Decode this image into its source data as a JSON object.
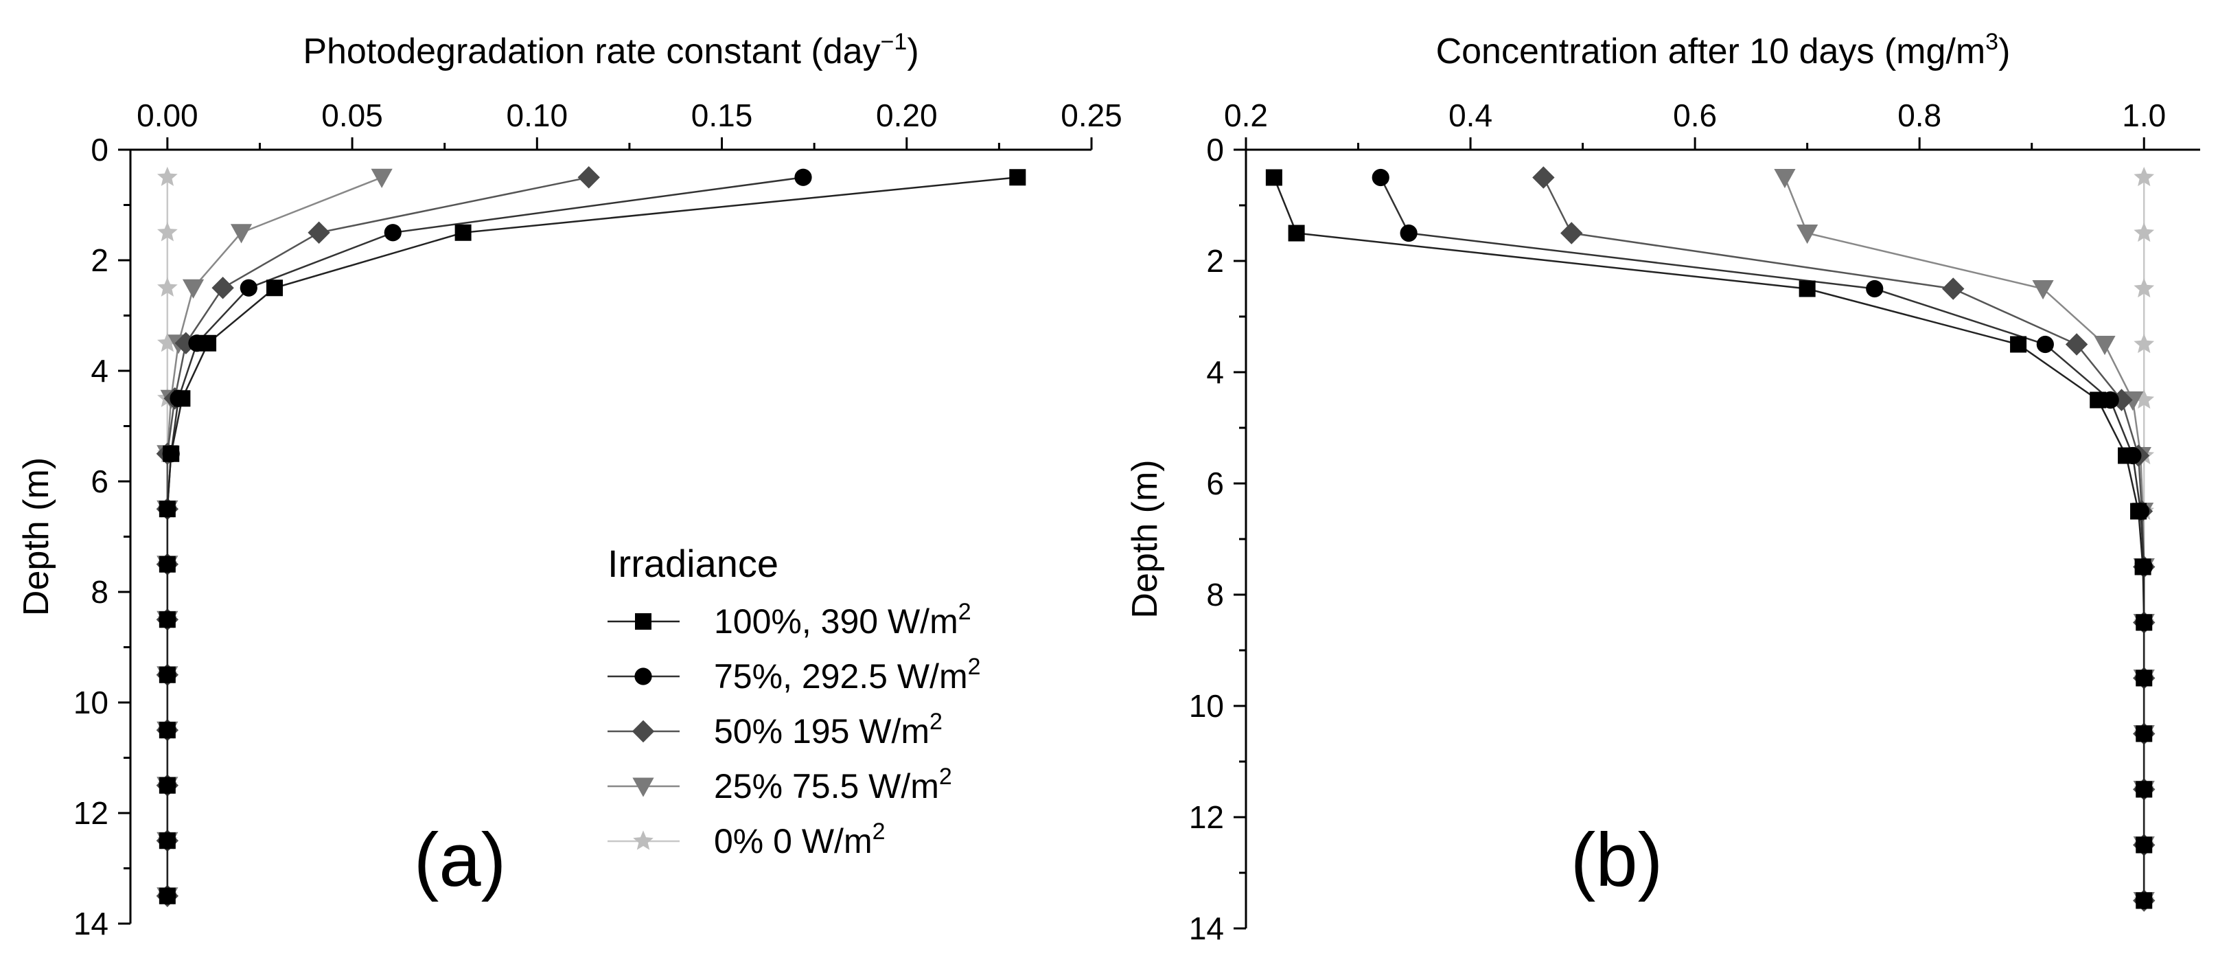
{
  "chart_data": [
    {
      "type": "line",
      "panel_label": "(a)",
      "xlabel": "Photodegradation rate constant (day",
      "xlabel_sup": "−1",
      "xlabel_end": ")",
      "ylabel": "Depth (m)",
      "x_axis_position": "top",
      "y_inverted": true,
      "xlim": [
        -0.01,
        0.25
      ],
      "ylim": [
        0,
        14
      ],
      "xticks": [
        0.0,
        0.05,
        0.1,
        0.15,
        0.2,
        0.25
      ],
      "xtick_labels": [
        "0.00",
        "0.05",
        "0.10",
        "0.15",
        "0.20",
        "0.25"
      ],
      "yticks": [
        0,
        2,
        4,
        6,
        8,
        10,
        12,
        14
      ],
      "ytick_labels": [
        "0",
        "2",
        "4",
        "6",
        "8",
        "10",
        "12",
        "14"
      ],
      "grid": false,
      "legend_position": "bottom-right",
      "depths": [
        0.5,
        1.5,
        2.5,
        3.5,
        4.5,
        5.5,
        6.5,
        7.5,
        8.5,
        9.5,
        10.5,
        11.5,
        12.5,
        13.5
      ],
      "series": [
        {
          "name": "100%, 390 W/m",
          "values": [
            0.23,
            0.08,
            0.029,
            0.011,
            0.004,
            0.001,
            0.0,
            0.0,
            0.0,
            0.0,
            0.0,
            0.0,
            0.0,
            0.0
          ]
        },
        {
          "name": "75%, 292.5 W/m",
          "values": [
            0.172,
            0.061,
            0.022,
            0.008,
            0.003,
            0.001,
            0.0,
            0.0,
            0.0,
            0.0,
            0.0,
            0.0,
            0.0,
            0.0
          ]
        },
        {
          "name": "50% 195 W/m",
          "values": [
            0.114,
            0.041,
            0.015,
            0.005,
            0.002,
            0.0,
            0.0,
            0.0,
            0.0,
            0.0,
            0.0,
            0.0,
            0.0,
            0.0
          ]
        },
        {
          "name": "25% 75.5 W/m",
          "values": [
            0.058,
            0.02,
            0.007,
            0.003,
            0.001,
            0.0,
            0.0,
            0.0,
            0.0,
            0.0,
            0.0,
            0.0,
            0.0,
            0.0
          ]
        },
        {
          "name": "0% 0 W/m",
          "values": [
            0.0,
            0.0,
            0.0,
            0.0,
            0.0,
            0.0,
            0.0,
            0.0,
            0.0,
            0.0,
            0.0,
            0.0,
            0.0,
            0.0
          ]
        }
      ]
    },
    {
      "type": "line",
      "panel_label": "(b)",
      "xlabel": "Concentration after 10 days (mg/m",
      "xlabel_sup": "3",
      "xlabel_end": ")",
      "ylabel": "Depth (m)",
      "x_axis_position": "top",
      "y_inverted": true,
      "xlim": [
        0.2,
        1.05
      ],
      "ylim": [
        0,
        14
      ],
      "xticks": [
        0.2,
        0.4,
        0.6,
        0.8,
        1.0
      ],
      "xtick_labels": [
        "0.2",
        "0.4",
        "0.6",
        "0.8",
        "1.0"
      ],
      "yticks": [
        0,
        2,
        4,
        6,
        8,
        10,
        12,
        14
      ],
      "ytick_labels": [
        "0",
        "2",
        "4",
        "6",
        "8",
        "10",
        "12",
        "14"
      ],
      "grid": false,
      "depths": [
        0.5,
        1.5,
        2.5,
        3.5,
        4.5,
        5.5,
        6.5,
        7.5,
        8.5,
        9.5,
        10.5,
        11.5,
        12.5,
        13.5
      ],
      "series": [
        {
          "name": "100%, 390 W/m",
          "values": [
            0.225,
            0.245,
            0.7,
            0.888,
            0.959,
            0.984,
            0.995,
            0.999,
            1.0,
            1.0,
            1.0,
            1.0,
            1.0,
            1.0
          ]
        },
        {
          "name": "75%, 292.5 W/m",
          "values": [
            0.32,
            0.345,
            0.76,
            0.912,
            0.97,
            0.99,
            0.997,
            1.0,
            1.0,
            1.0,
            1.0,
            1.0,
            1.0,
            1.0
          ]
        },
        {
          "name": "50% 195 W/m",
          "values": [
            0.465,
            0.49,
            0.83,
            0.94,
            0.98,
            0.995,
            0.998,
            1.0,
            1.0,
            1.0,
            1.0,
            1.0,
            1.0,
            1.0
          ]
        },
        {
          "name": "25% 75.5 W/m",
          "values": [
            0.68,
            0.7,
            0.91,
            0.965,
            0.99,
            0.997,
            0.999,
            1.0,
            1.0,
            1.0,
            1.0,
            1.0,
            1.0,
            1.0
          ]
        },
        {
          "name": "0% 0 W/m",
          "values": [
            1.0,
            1.0,
            1.0,
            1.0,
            1.0,
            1.0,
            1.0,
            1.0,
            1.0,
            1.0,
            1.0,
            1.0,
            1.0,
            1.0
          ]
        }
      ]
    }
  ],
  "legend": {
    "title": "Irradiance",
    "items": [
      {
        "label": "100%, 390 W/m",
        "sup": "2"
      },
      {
        "label": "75%, 292.5 W/m",
        "sup": "2"
      },
      {
        "label": "50% 195 W/m",
        "sup": "2"
      },
      {
        "label": "25% 75.5 W/m",
        "sup": "2"
      },
      {
        "label": "0% 0 W/m",
        "sup": "2"
      }
    ]
  },
  "styles": [
    {
      "marker": "square",
      "color": "#000000",
      "line": "#222222"
    },
    {
      "marker": "circle",
      "color": "#000000",
      "line": "#333333"
    },
    {
      "marker": "diamond",
      "color": "#4a4a4a",
      "line": "#555555"
    },
    {
      "marker": "triangle-down",
      "color": "#7a7a7a",
      "line": "#888888"
    },
    {
      "marker": "star",
      "color": "#bdbdbd",
      "line": "#c8c8c8"
    }
  ]
}
